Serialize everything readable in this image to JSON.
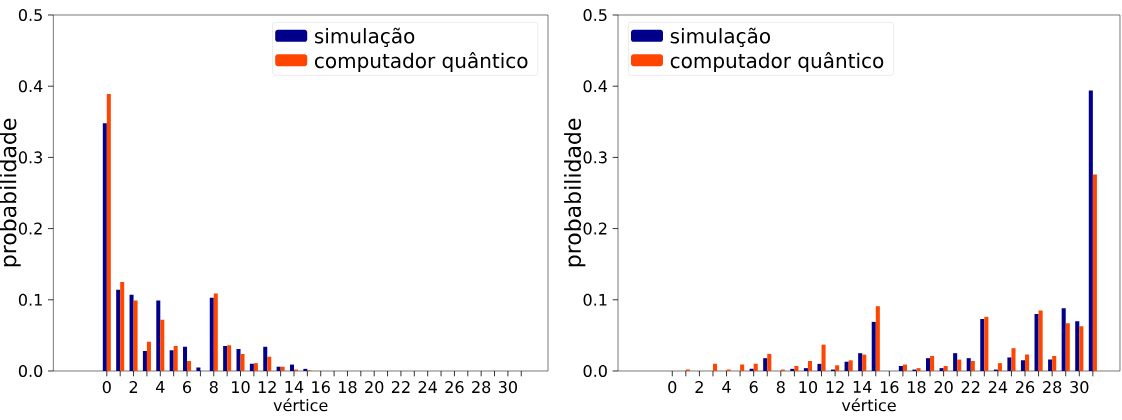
{
  "chart_data": [
    {
      "type": "bar",
      "xlabel": "vértice",
      "ylabel": "probabilidade",
      "categories": [
        "0",
        null,
        "2",
        null,
        "4",
        null,
        "6",
        null,
        "8",
        null,
        "10",
        null,
        "12",
        null,
        "14",
        null,
        "16",
        null,
        "18",
        null,
        "20",
        null,
        "22",
        null,
        "24",
        null,
        "26",
        null,
        "28",
        null,
        "30",
        null
      ],
      "series": [
        {
          "name": "simulação",
          "color": "#00008b",
          "values": [
            0.348,
            0.114,
            0.107,
            0.028,
            0.099,
            0.029,
            0.034,
            0.005,
            0.103,
            0.035,
            0.031,
            0.01,
            0.034,
            0.006,
            0.009,
            0.003,
            0,
            0,
            0,
            0,
            0,
            0,
            0,
            0,
            0,
            0,
            0,
            0,
            0,
            0,
            0,
            0
          ]
        },
        {
          "name": "computador quântico",
          "color": "#ff4500",
          "values": [
            0.389,
            0.125,
            0.099,
            0.041,
            0.072,
            0.035,
            0.014,
            0,
            0.109,
            0.036,
            0.024,
            0.011,
            0.02,
            0.006,
            0.002,
            0.001,
            0,
            0,
            0,
            0,
            0,
            0,
            0,
            0,
            0,
            0,
            0,
            0,
            0,
            0,
            0,
            0
          ]
        }
      ],
      "ylim": [
        0,
        0.5
      ],
      "yticks": [
        {
          "value": 0,
          "label": "0.0"
        },
        {
          "value": 0.1,
          "label": "0.1"
        },
        {
          "value": 0.2,
          "label": "0.2"
        },
        {
          "value": 0.3,
          "label": "0.3"
        },
        {
          "value": 0.4,
          "label": "0.4"
        },
        {
          "value": 0.5,
          "label": "0.5"
        }
      ],
      "legend": "top right"
    },
    {
      "type": "bar",
      "xlabel": "vértice",
      "ylabel": "probabilidade",
      "categories": [
        "0",
        null,
        "2",
        null,
        "4",
        null,
        "6",
        null,
        "8",
        null,
        "10",
        null,
        "12",
        null,
        "14",
        null,
        "16",
        null,
        "18",
        null,
        "20",
        null,
        "22",
        null,
        "24",
        null,
        "26",
        null,
        "28",
        null,
        "30",
        null
      ],
      "series": [
        {
          "name": "simulação",
          "color": "#00008b",
          "values": [
            0,
            0,
            0,
            0,
            0,
            0,
            0.003,
            0.018,
            0,
            0.003,
            0.004,
            0.01,
            0.002,
            0.013,
            0.025,
            0.069,
            0,
            0.007,
            0.002,
            0.018,
            0.004,
            0.025,
            0.018,
            0.073,
            0.002,
            0.019,
            0.015,
            0.08,
            0.016,
            0.088,
            0.07,
            0.394
          ]
        },
        {
          "name": "computador quântico",
          "color": "#ff4500",
          "values": [
            0,
            0.002,
            0,
            0.01,
            0.002,
            0.009,
            0.01,
            0.024,
            0.002,
            0.007,
            0.014,
            0.037,
            0.008,
            0.015,
            0.023,
            0.091,
            0,
            0.009,
            0.004,
            0.021,
            0.007,
            0.016,
            0.014,
            0.076,
            0.011,
            0.032,
            0.023,
            0.085,
            0.021,
            0.067,
            0.063,
            0.276
          ]
        }
      ],
      "ylim": [
        0,
        0.5
      ],
      "yticks": [
        {
          "value": 0,
          "label": "0.0"
        },
        {
          "value": 0.1,
          "label": "0.1"
        },
        {
          "value": 0.2,
          "label": "0.2"
        },
        {
          "value": 0.3,
          "label": "0.3"
        },
        {
          "value": 0.4,
          "label": "0.4"
        },
        {
          "value": 0.5,
          "label": "0.5"
        }
      ],
      "legend": "top left"
    }
  ]
}
